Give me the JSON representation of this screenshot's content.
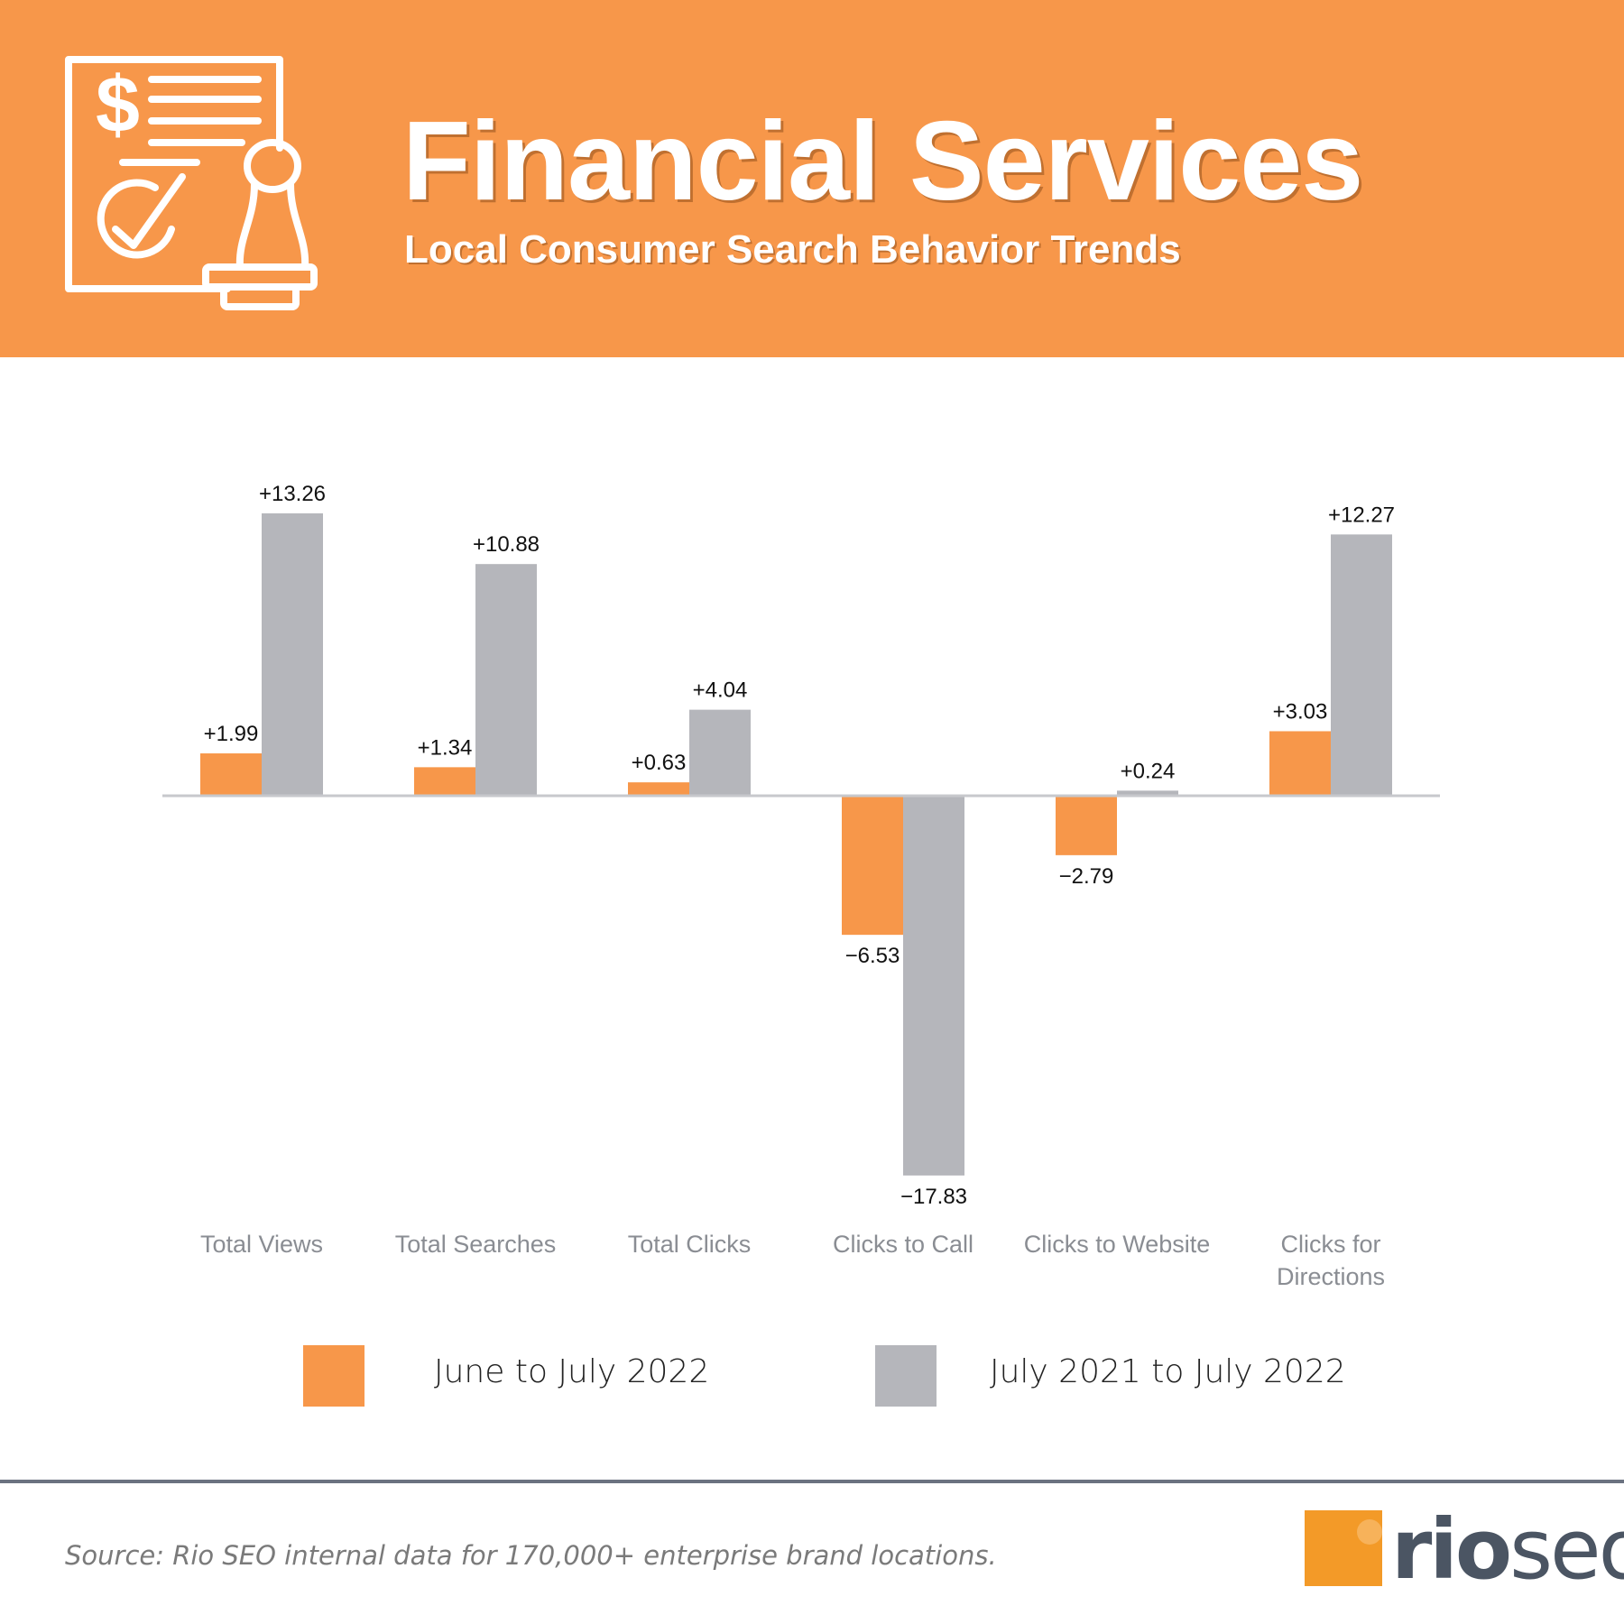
{
  "header": {
    "icon": "financial-document-stamp-icon",
    "title": "Financial Services",
    "subtitle": "Local Consumer Search Behavior Trends",
    "background_color": "#F7974A"
  },
  "chart_data": {
    "type": "bar",
    "categories": [
      [
        "Total Views"
      ],
      [
        "Total Searches"
      ],
      [
        "Total Clicks"
      ],
      [
        "Clicks to Call"
      ],
      [
        "Clicks to Website"
      ],
      [
        "Clicks for",
        "Directions"
      ]
    ],
    "series": [
      {
        "name": "June to July 2022",
        "color": "#F7974A",
        "values": [
          1.99,
          1.34,
          0.63,
          -6.53,
          -2.79,
          3.03
        ],
        "labels": [
          "+1.99",
          "+1.34",
          "+0.63",
          "−6.53",
          "−2.79",
          "+3.03"
        ]
      },
      {
        "name": "July 2021 to July 2022",
        "color": "#B5B6BB",
        "values": [
          13.26,
          10.88,
          4.04,
          -17.83,
          0.24,
          12.27
        ],
        "labels": [
          "+13.26",
          "+10.88",
          "+4.04",
          "−17.83",
          "+0.24",
          "+12.27"
        ]
      }
    ],
    "ylim": [
      -17.83,
      13.26
    ],
    "grid": false,
    "legend_position": "bottom"
  },
  "legend": {
    "items": [
      {
        "label": "June to July 2022",
        "color": "#F7974A"
      },
      {
        "label": "July 2021 to July 2022",
        "color": "#B5B6BB"
      }
    ]
  },
  "footer": {
    "source": "Source: Rio SEO internal data for 170,000+ enterprise brand locations.",
    "logo_rio": "rio",
    "logo_seo": "seo"
  }
}
